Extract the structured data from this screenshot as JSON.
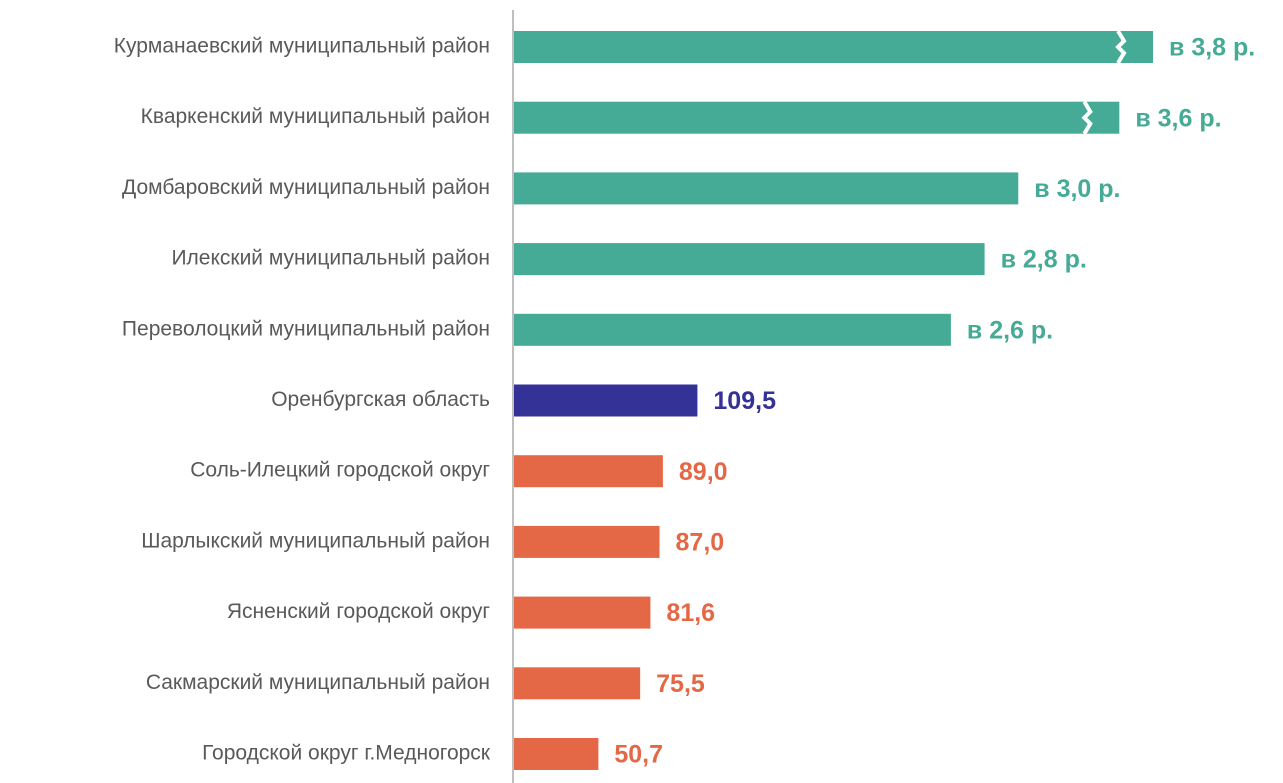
{
  "chart_data": {
    "type": "bar",
    "orientation": "horizontal",
    "categories": [
      "Курманаевский муниципальный район",
      "Кваркенский муниципальный район",
      "Домбаровский муниципальный район",
      "Илекский муниципальный район",
      "Переволоцкий муниципальный район",
      "Оренбургская область",
      "Соль-Илецкий городской округ",
      "Шарлыкский муниципальный район",
      "Ясненский городской округ",
      "Сакмарский муниципальный район",
      "Городской округ г.Медногорск"
    ],
    "values": [
      380,
      360,
      300,
      280,
      260,
      109.5,
      89.0,
      87.0,
      81.6,
      75.5,
      50.7
    ],
    "value_labels": [
      "в 3,8 р.",
      "в 3,6 р.",
      "в 3,0 р.",
      "в 2,8 р.",
      "в 2,6 р.",
      "109,5",
      "89,0",
      "87,0",
      "81,6",
      "75,5",
      "50,7"
    ],
    "colors": [
      "#45aa96",
      "#45aa96",
      "#45aa96",
      "#45aa96",
      "#45aa96",
      "#353297",
      "#e46845",
      "#e46845",
      "#e46845",
      "#e46845",
      "#e46845"
    ]
  }
}
